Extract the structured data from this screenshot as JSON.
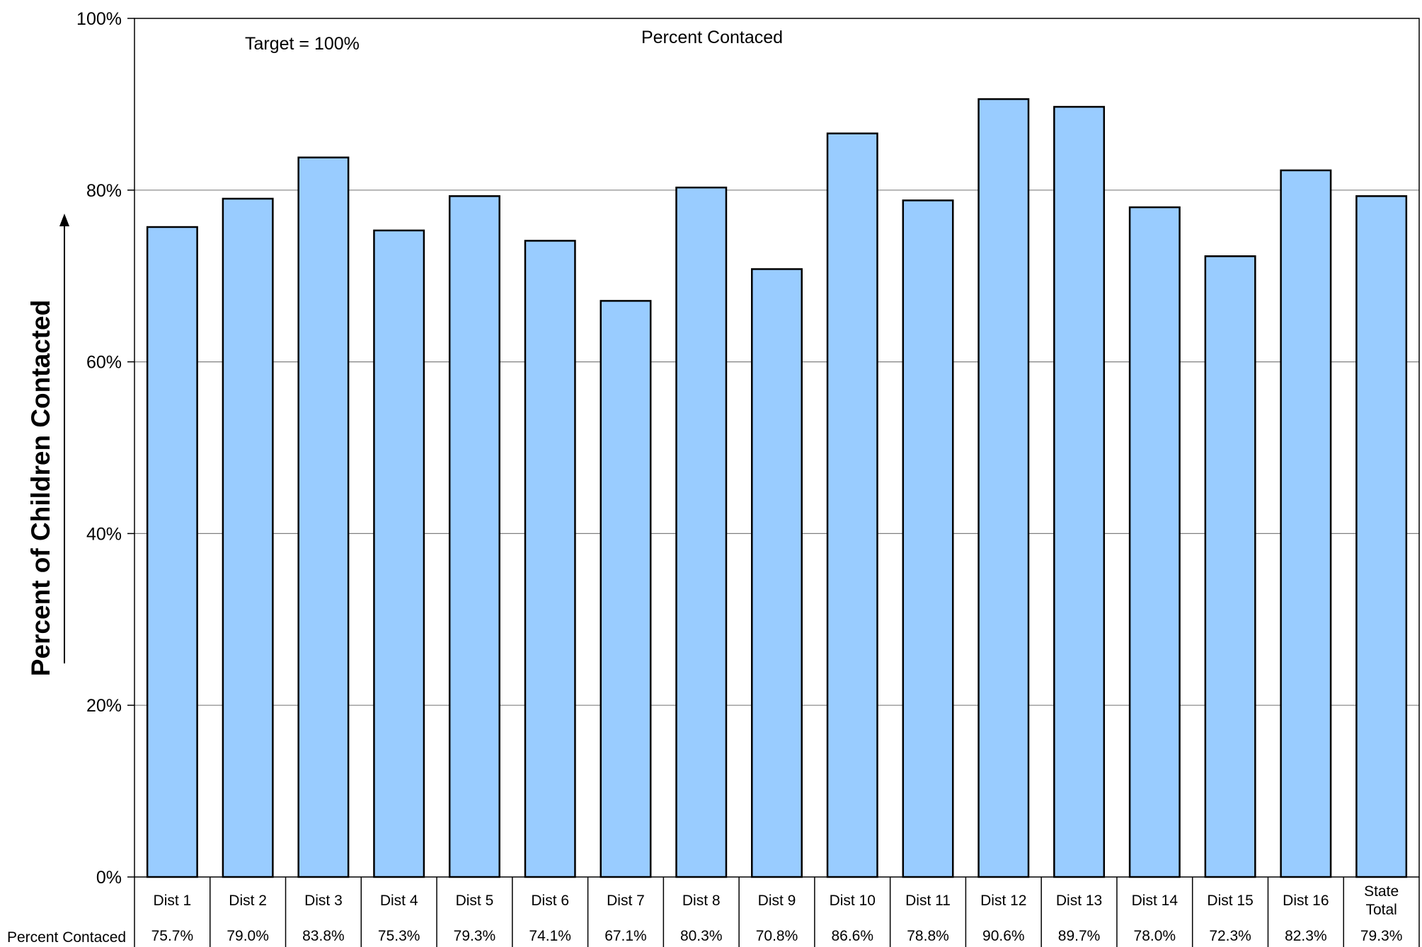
{
  "chart_data": {
    "type": "bar",
    "categories": [
      "Dist 1",
      "Dist 2",
      "Dist 3",
      "Dist 4",
      "Dist 5",
      "Dist 6",
      "Dist 7",
      "Dist 8",
      "Dist 9",
      "Dist 10",
      "Dist 11",
      "Dist 12",
      "Dist 13",
      "Dist 14",
      "Dist 15",
      "Dist 16",
      "State Total"
    ],
    "series": [
      {
        "name": "Percent Contaced",
        "values": [
          75.7,
          79.0,
          83.8,
          75.3,
          79.3,
          74.1,
          67.1,
          80.3,
          70.8,
          86.6,
          78.8,
          90.6,
          89.7,
          78.0,
          72.3,
          82.3,
          79.3
        ],
        "color": "#99ccff"
      }
    ],
    "value_labels": [
      "75.7%",
      "79.0%",
      "83.8%",
      "75.3%",
      "79.3%",
      "74.1%",
      "67.1%",
      "80.3%",
      "70.8%",
      "86.6%",
      "78.8%",
      "90.6%",
      "89.7%",
      "78.0%",
      "72.3%",
      "82.3%",
      "79.3%"
    ],
    "data_table_row_label": "Percent Contaced",
    "title": "Percent Contaced",
    "annotation": "Target = 100%",
    "xlabel": "",
    "ylabel": "Percent of Children Contacted",
    "ylim": [
      0,
      100
    ],
    "yticks": [
      0,
      20,
      40,
      60,
      80,
      100
    ],
    "ytick_labels": [
      "0%",
      "20%",
      "40%",
      "60%",
      "80%",
      "100%"
    ],
    "grid": true,
    "legend": "none"
  }
}
